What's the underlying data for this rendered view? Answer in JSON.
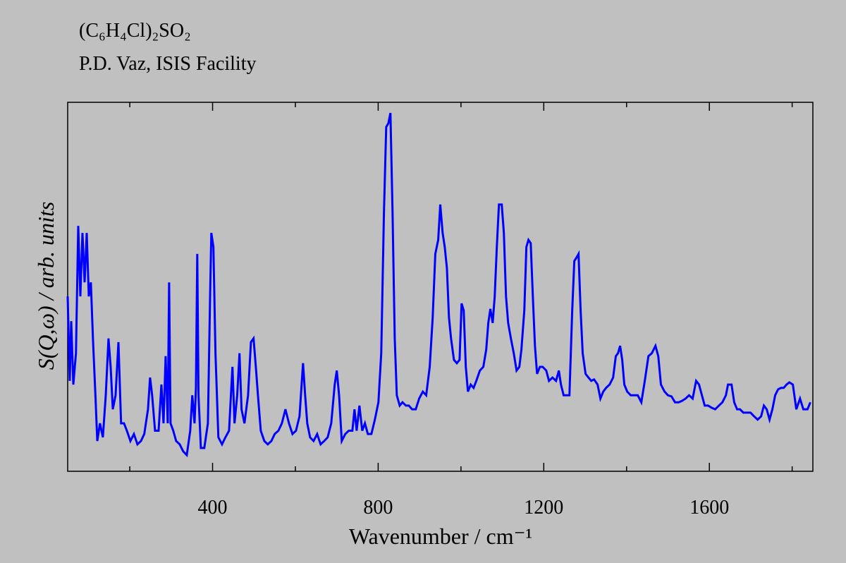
{
  "chart_data": {
    "type": "line",
    "title": "(C₆H₄Cl)₂SO₂",
    "subtitle": "P.D. Vaz, ISIS Facility",
    "x_label": "Wavenumber / cm⁻¹",
    "y_label": "S(Q,ω) / arb. units",
    "xlim": [
      50,
      1850
    ],
    "xticks": [
      400,
      800,
      1200,
      1600
    ],
    "xminor_ticks": [
      200,
      600,
      1000,
      1400,
      1800
    ],
    "ylim": [
      0,
      100
    ],
    "grid": false,
    "series": [
      {
        "name": "S(Q,ω)",
        "color": "#0000ff",
        "x": [
          50,
          55,
          58.5,
          63.6,
          70,
          75.5,
          80.6,
          85.7,
          90.9,
          96,
          101,
          106,
          111,
          117,
          121.5,
          128,
          135,
          142,
          148.6,
          153.8,
          159,
          165.7,
          172.6,
          179,
          186,
          193,
          201.5,
          210,
          218.5,
          227,
          235,
          244,
          249,
          254,
          261,
          269.6,
          276.4,
          281.5,
          286.6,
          291.7,
          295,
          298.5,
          305,
          312,
          320.6,
          329,
          337.7,
          346,
          351,
          356.4,
          359.8,
          363,
          366,
          371.7,
          380,
          388.7,
          394,
          397,
          402,
          407,
          414,
          422.8,
          431,
          439.8,
          448,
          453,
          459.5,
          465,
          470,
          477,
          485.7,
          492.6,
          499,
          504.5,
          509.6,
          516.4,
          525,
          533.4,
          542,
          550,
          559,
          567.4,
          576,
          584.5,
          593,
          601.5,
          610,
          618.5,
          623.6,
          628.7,
          635.5,
          644,
          652.6,
          661,
          669.6,
          678,
          686.6,
          695,
          700,
          705.6,
          712,
          720.6,
          729,
          737.7,
          742.8,
          748,
          754.7,
          761.5,
          768,
          775,
          783.6,
          792,
          800.6,
          807.4,
          814,
          819.4,
          824.5,
          829.6,
          834.7,
          840,
          845,
          852,
          858.7,
          867,
          874,
          882,
          890.8,
          899,
          907.8,
          916,
          924.5,
          931.7,
          938,
          945,
          950,
          955.7,
          960.8,
          966,
          971,
          976,
          983,
          990,
          996.6,
          1001.5,
          1006.6,
          1011.7,
          1016.8,
          1023.6,
          1030.5,
          1037,
          1045.7,
          1054,
          1061,
          1066,
          1071,
          1076.6,
          1081.5,
          1086.6,
          1091.7,
          1098.5,
          1103.6,
          1108.8,
          1114,
          1120.6,
          1127.5,
          1134.3,
          1141,
          1146,
          1153,
          1158,
          1163,
          1168.5,
          1173.6,
          1178.7,
          1183.8,
          1190.6,
          1197.4,
          1206,
          1212.6,
          1221,
          1229.6,
          1236.4,
          1241.5,
          1248,
          1255,
          1262,
          1268.7,
          1273.8,
          1279,
          1284,
          1289,
          1294,
          1301,
          1308,
          1314.7,
          1321.5,
          1330,
          1336.8,
          1343.7,
          1350.5,
          1359,
          1367.5,
          1374,
          1379.3,
          1384.4,
          1389.5,
          1394.6,
          1401.5,
          1410,
          1418.5,
          1427,
          1435.7,
          1444,
          1452.8,
          1461,
          1469.8,
          1476.6,
          1483,
          1491.7,
          1500,
          1508.5,
          1517,
          1525.7,
          1534,
          1542.5,
          1551,
          1559.6,
          1568,
          1575,
          1582,
          1588.7,
          1597,
          1605.7,
          1614,
          1623,
          1631.5,
          1640,
          1645,
          1653.6,
          1660,
          1667,
          1674,
          1682,
          1691,
          1699.4,
          1708,
          1716.6,
          1725,
          1731.7,
          1738.5,
          1745.4,
          1752.2,
          1759,
          1766,
          1773,
          1779.6,
          1786.4,
          1793.2,
          1801.7,
          1810,
          1819,
          1827,
          1837,
          1844
        ],
        "values": [
          47.4,
          24.5,
          40.7,
          23.5,
          32,
          66.5,
          47.4,
          64.6,
          51.2,
          64.6,
          47.4,
          51.2,
          36,
          20.6,
          8.2,
          13,
          9.2,
          20.6,
          36,
          28.3,
          16.8,
          20.6,
          35,
          13,
          13,
          11,
          8.2,
          10.1,
          7.3,
          8.2,
          10.1,
          16.8,
          25.4,
          20.6,
          11,
          11,
          23.5,
          13,
          31.2,
          13,
          51.2,
          13,
          11,
          8.2,
          7.3,
          5.4,
          4.4,
          11,
          20.6,
          13,
          22.6,
          58.9,
          20.6,
          6.3,
          6.3,
          13,
          47.4,
          64.6,
          60.8,
          32,
          9.2,
          7.3,
          9.2,
          11,
          28.3,
          13,
          20.6,
          32,
          16.8,
          13,
          20.6,
          35,
          36,
          28.3,
          20.6,
          11,
          8.2,
          7.3,
          8.2,
          10.1,
          11,
          13,
          16.8,
          13,
          10.1,
          11,
          14.9,
          29.3,
          20.6,
          13,
          9.2,
          8.2,
          10.1,
          7.3,
          8.2,
          9.2,
          13,
          23.5,
          27.3,
          20.6,
          8.2,
          10.1,
          11,
          11,
          16.8,
          11,
          17.8,
          11,
          13,
          10.1,
          10.1,
          14,
          18.7,
          32,
          70.4,
          93.3,
          94.3,
          97.1,
          70.4,
          36,
          20.6,
          17.8,
          18.7,
          17.8,
          17.8,
          16.8,
          16.8,
          19.7,
          21.6,
          20.6,
          28.3,
          41.7,
          58.9,
          62.7,
          72.3,
          64.6,
          60.8,
          55.1,
          41.7,
          36,
          30.2,
          29.3,
          30.2,
          45.5,
          43.6,
          28.3,
          21.6,
          23.5,
          22.6,
          24.5,
          27.3,
          28.3,
          33,
          40.2,
          44,
          40.2,
          47.4,
          60.8,
          72.3,
          72.3,
          64.6,
          47.4,
          40.2,
          36,
          32,
          27.3,
          28.3,
          33,
          43.6,
          60.8,
          62.7,
          61.8,
          47.4,
          34,
          26.4,
          28.3,
          28.3,
          27.3,
          24.5,
          25.4,
          24.5,
          27.3,
          23.5,
          20.6,
          20.6,
          20.6,
          43.6,
          57,
          57.9,
          58.9,
          43.6,
          32,
          26.4,
          25.4,
          24.5,
          24.9,
          23.5,
          19.7,
          21.6,
          22.6,
          23.5,
          25.4,
          31.2,
          32,
          34,
          30.2,
          23.5,
          21.6,
          20.6,
          20.6,
          20.6,
          18.7,
          24.5,
          31.2,
          32,
          34,
          31.2,
          23.5,
          21.6,
          20.6,
          20.3,
          18.7,
          18.7,
          19.1,
          19.7,
          20.6,
          19.7,
          24.5,
          23.5,
          20.6,
          17.8,
          17.8,
          17.2,
          16.8,
          17.8,
          18.7,
          20.6,
          23.5,
          23.5,
          18.7,
          16.8,
          16.8,
          15.9,
          15.9,
          15.9,
          14.9,
          14,
          14.9,
          17.8,
          16.8,
          14,
          16.8,
          20.6,
          22.2,
          22.6,
          22.6,
          23.5,
          24.1,
          23.5,
          16.8,
          19.7,
          16.8,
          16.8,
          18.7
        ]
      }
    ]
  }
}
